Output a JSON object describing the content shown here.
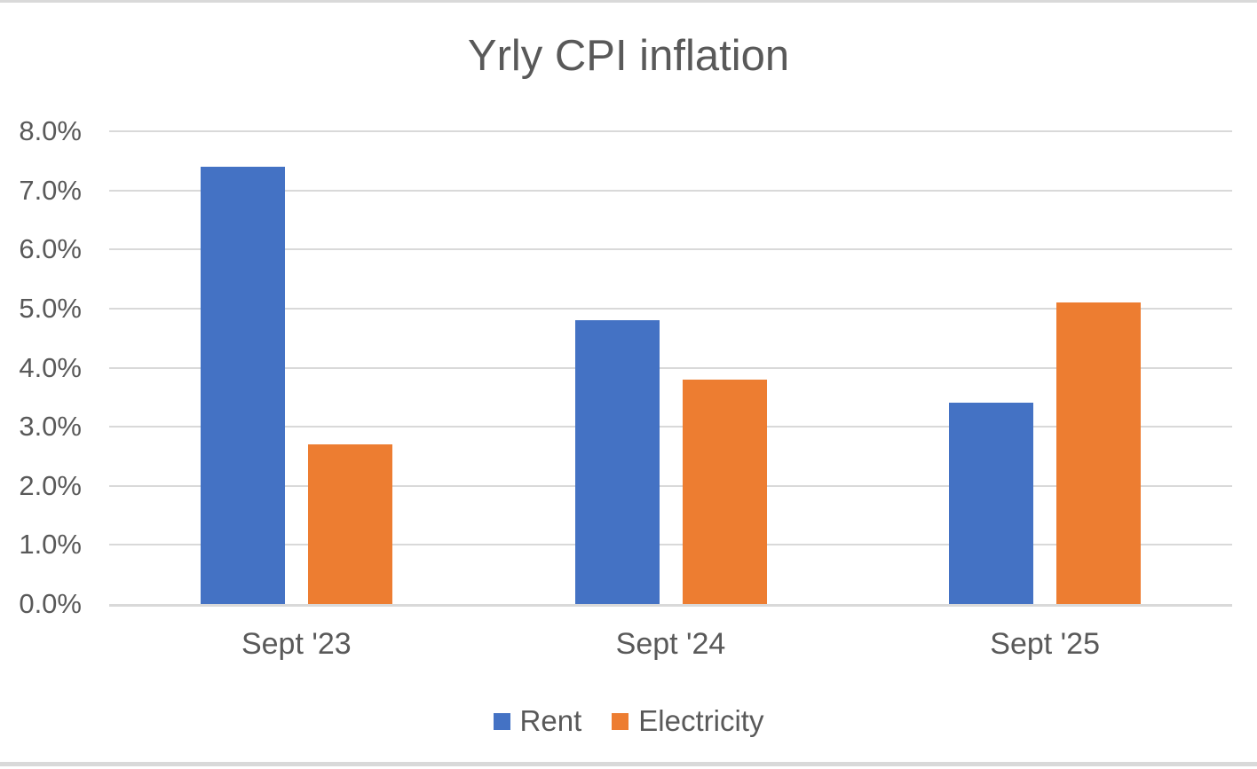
{
  "chart_data": {
    "type": "bar",
    "title": "Yrly CPI inflation",
    "categories": [
      "Sept '23",
      "Sept '24",
      "Sept '25"
    ],
    "series": [
      {
        "name": "Rent",
        "color": "#4472C4",
        "values": [
          7.4,
          4.8,
          3.4
        ]
      },
      {
        "name": "Electricity",
        "color": "#ED7D31",
        "values": [
          2.7,
          3.8,
          5.1
        ]
      }
    ],
    "ylim": [
      0,
      8
    ],
    "ytick_step": 1,
    "yticks": [
      "0.0%",
      "1.0%",
      "2.0%",
      "3.0%",
      "4.0%",
      "5.0%",
      "6.0%",
      "7.0%",
      "8.0%"
    ],
    "xlabel": "",
    "ylabel": "",
    "grid": "horizontal-only",
    "legend_position": "bottom",
    "colors": {
      "text": "#595959",
      "gridline": "#D9D9D9",
      "background": "#FFFFFF",
      "edge_strip": "#D9D9D9"
    }
  }
}
